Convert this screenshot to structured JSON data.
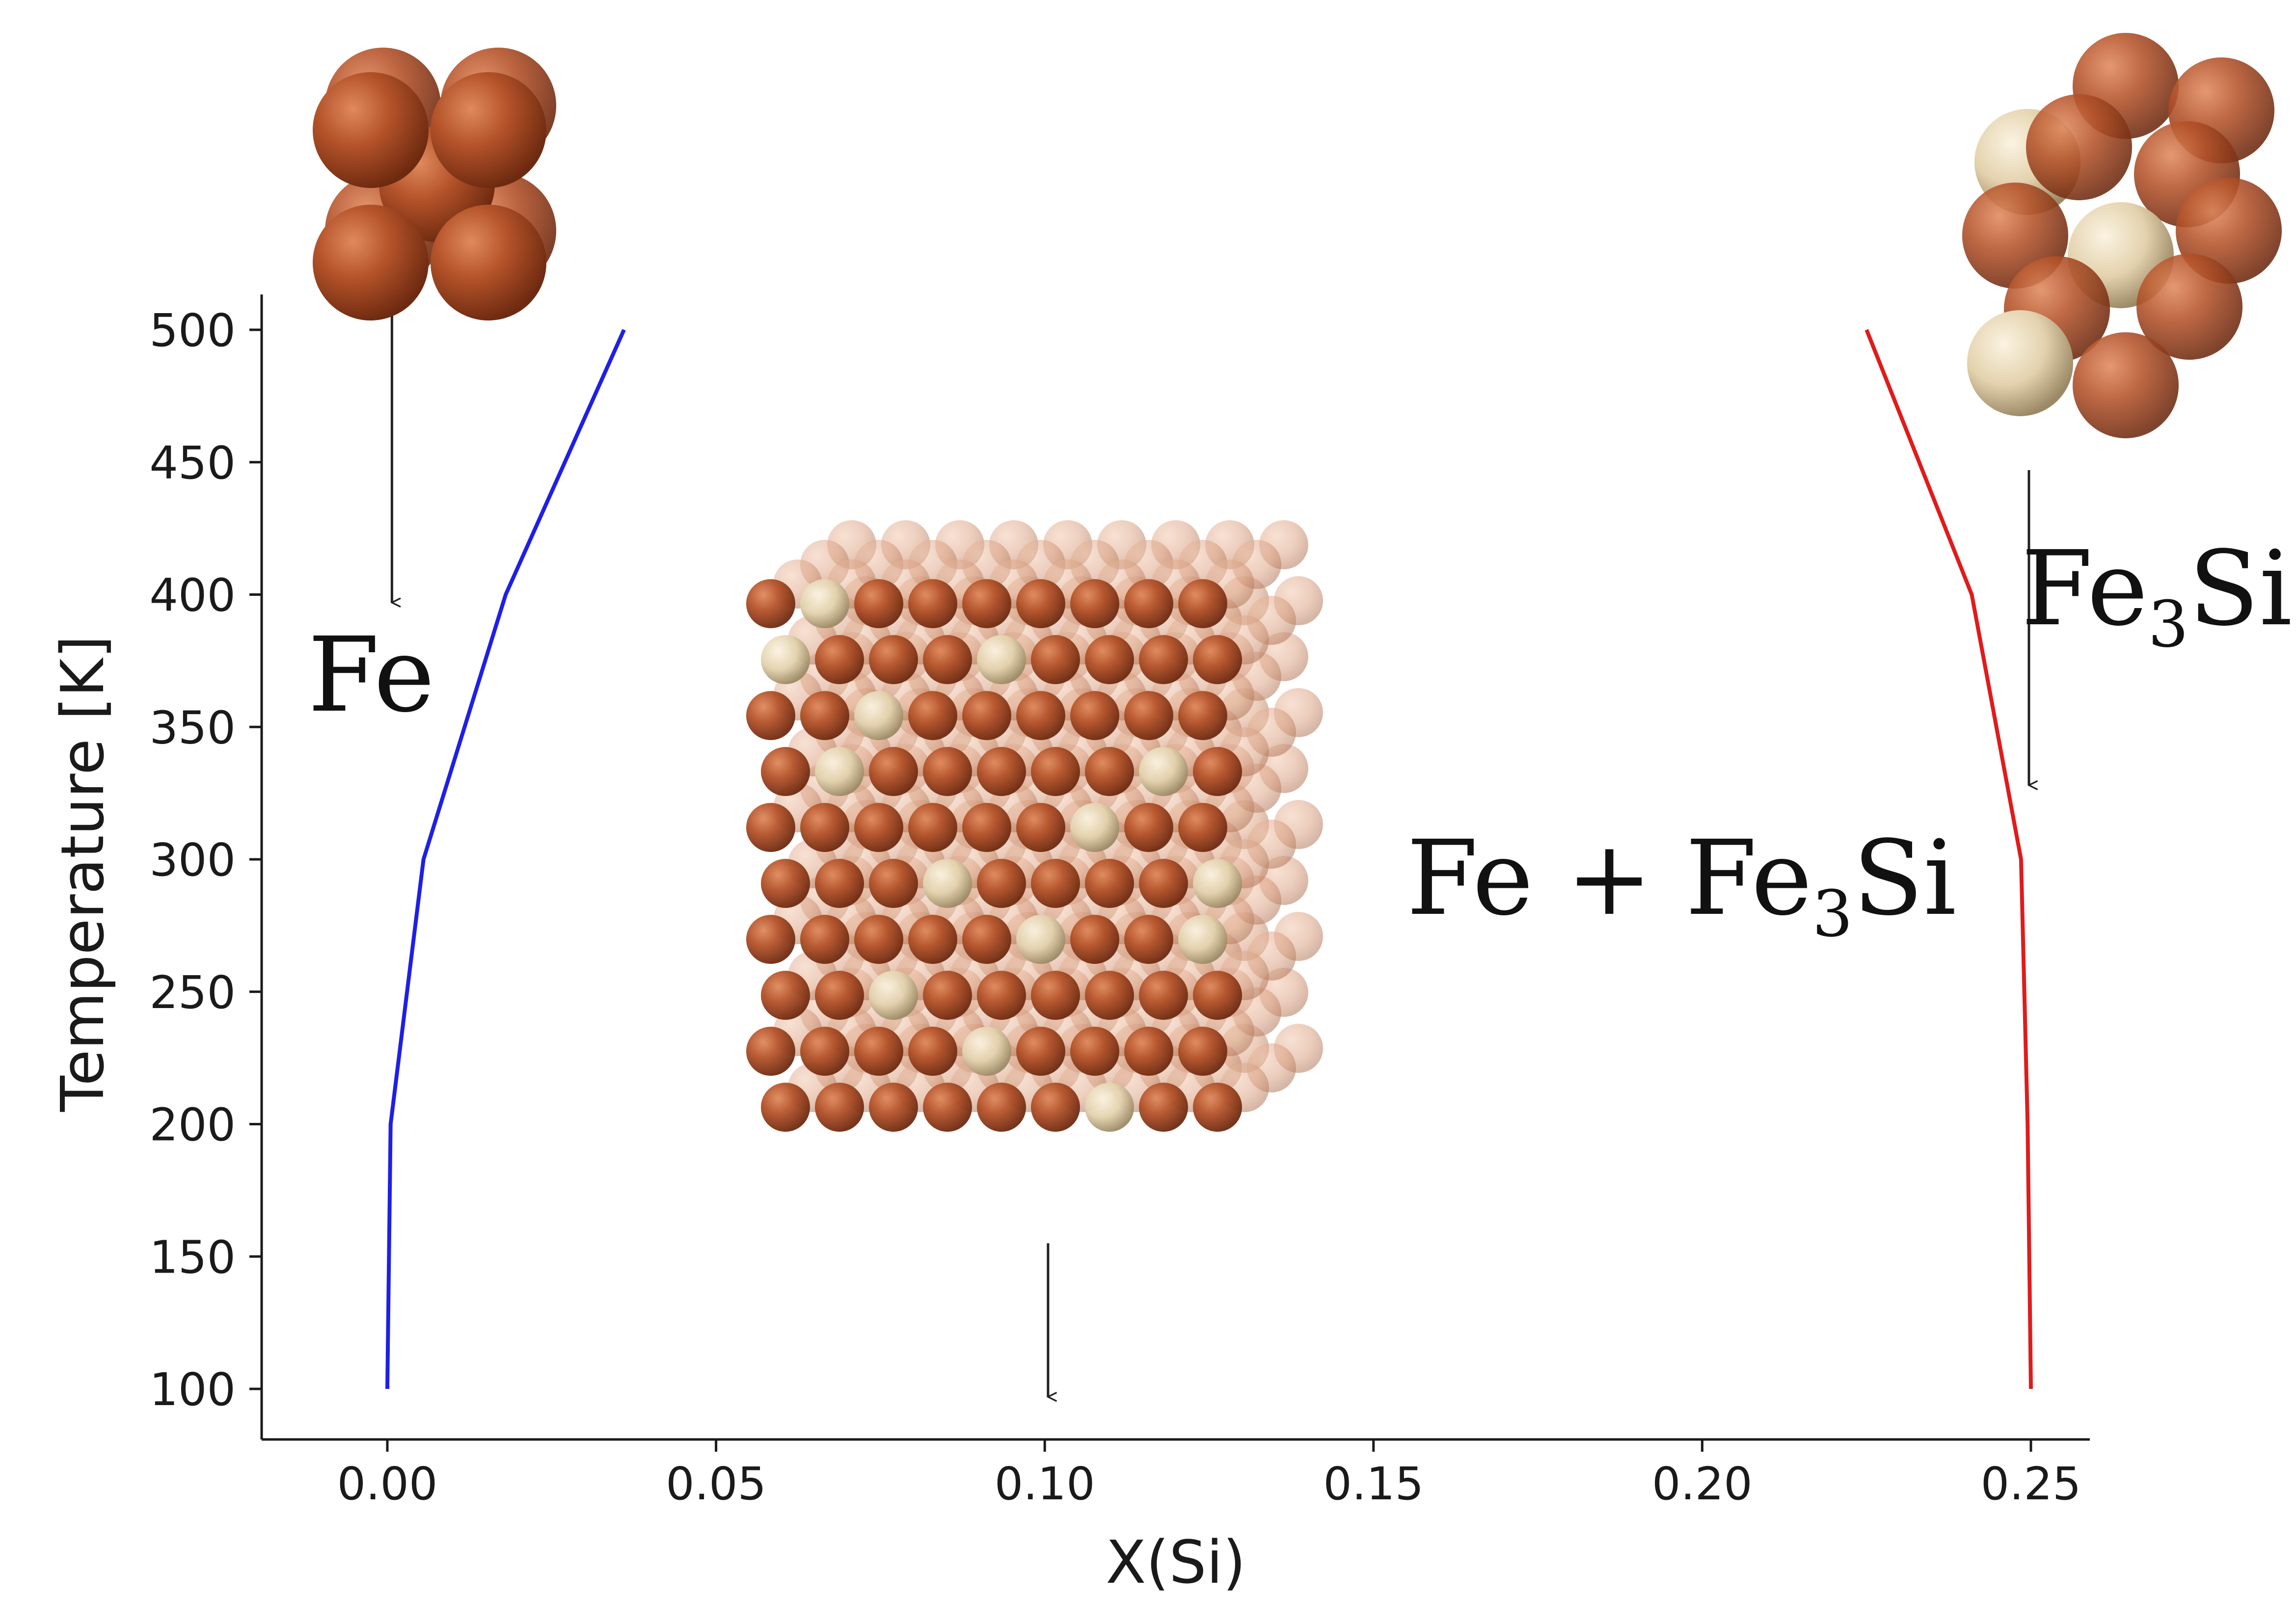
{
  "chart_data": {
    "type": "line",
    "xlabel": "X(Si)",
    "ylabel": "Temperature [K]",
    "xlim": [
      -0.019,
      0.259
    ],
    "ylim": [
      81,
      513
    ],
    "xticks": [
      "0.00",
      "0.05",
      "0.10",
      "0.15",
      "0.20",
      "0.25"
    ],
    "xtick_values": [
      0.0,
      0.05,
      0.1,
      0.15,
      0.2,
      0.25
    ],
    "yticks": [
      "100",
      "150",
      "200",
      "250",
      "300",
      "350",
      "400",
      "450",
      "500"
    ],
    "ytick_values": [
      100,
      150,
      200,
      250,
      300,
      350,
      400,
      450,
      500
    ],
    "grid": false,
    "series": [
      {
        "color": "#1f1fe6",
        "x": [
          0.0,
          0.0005,
          0.0055,
          0.018,
          0.036
        ],
        "y": [
          100,
          200,
          300,
          400,
          500
        ]
      },
      {
        "color": "#e01b1b",
        "x": [
          0.25,
          0.2495,
          0.2485,
          0.241,
          0.225
        ],
        "y": [
          100,
          200,
          300,
          400,
          500
        ]
      }
    ],
    "annotations": [
      {
        "text": "Fe",
        "x": -0.012,
        "y": 368,
        "arrow_x": 0.0007,
        "arrow_from_y": 525,
        "arrow_to_y": 397
      },
      {
        "text_main": "Fe + Fe",
        "text_sub": "3",
        "text_tail": "Si",
        "x": 0.155,
        "y": 290
      },
      {
        "text_main": "Fe",
        "text_sub": "3",
        "text_tail": "Si",
        "x": 0.248,
        "y": 395,
        "arrow_x": 0.2497,
        "arrow_from_y": 447,
        "arrow_to_y": 328
      },
      {
        "arrow_x": 0.1005,
        "arrow_from_y": 155,
        "arrow_to_y": 97
      }
    ],
    "structure_images": [
      {
        "name": "fe-bcc-cell",
        "description_colors": {
          "fe": "#b5532a"
        }
      },
      {
        "name": "fe3si-cell",
        "description_colors": {
          "fe": "#b5532a",
          "si": "#e3d2ad"
        }
      },
      {
        "name": "fe-fe3si-supercell",
        "description_colors": {
          "fe": "#b5532a",
          "si": "#e3d2ad"
        }
      }
    ]
  }
}
